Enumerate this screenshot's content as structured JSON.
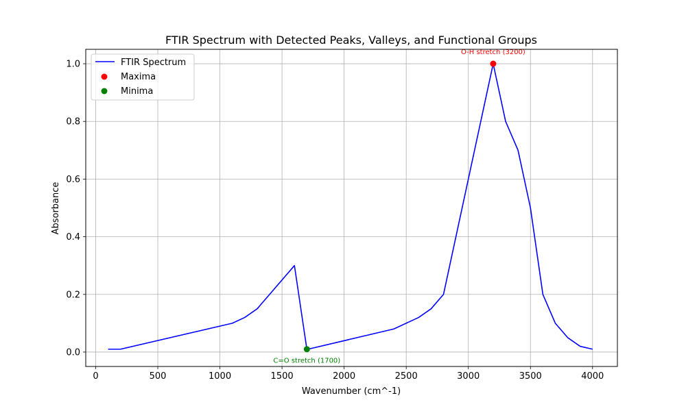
{
  "chart_data": {
    "type": "line",
    "title": "FTIR Spectrum with Detected Peaks, Valleys, and Functional Groups",
    "xlabel": "Wavenumber (cm^-1)",
    "ylabel": "Absorbance",
    "xlim": [
      -80,
      4200
    ],
    "ylim": [
      -0.05,
      1.05
    ],
    "xticks": [
      0,
      500,
      1000,
      1500,
      2000,
      2500,
      3000,
      3500,
      4000
    ],
    "yticks": [
      0.0,
      0.2,
      0.4,
      0.6,
      0.8,
      1.0
    ],
    "grid": true,
    "legend_position": "top-left",
    "series": [
      {
        "name": "FTIR Spectrum",
        "color": "#0000ff",
        "x": [
          100,
          200,
          1100,
          1200,
          1300,
          1600,
          1700,
          1710,
          2400,
          2600,
          2700,
          2800,
          3200,
          3300,
          3400,
          3500,
          3600,
          3700,
          3800,
          3900,
          4000
        ],
        "y": [
          0.01,
          0.01,
          0.1,
          0.12,
          0.15,
          0.3,
          0.01,
          0.01,
          0.08,
          0.12,
          0.15,
          0.2,
          1.0,
          0.8,
          0.7,
          0.5,
          0.2,
          0.1,
          0.05,
          0.02,
          0.01
        ]
      }
    ],
    "maxima": {
      "name": "Maxima",
      "color": "#ff0000",
      "points": [
        {
          "x": 3200,
          "y": 1.0,
          "label": "O-H stretch (3200)"
        }
      ]
    },
    "minima": {
      "name": "Minima",
      "color": "#008000",
      "points": [
        {
          "x": 1700,
          "y": 0.01,
          "label": "C=O stretch (1700)"
        }
      ]
    }
  }
}
